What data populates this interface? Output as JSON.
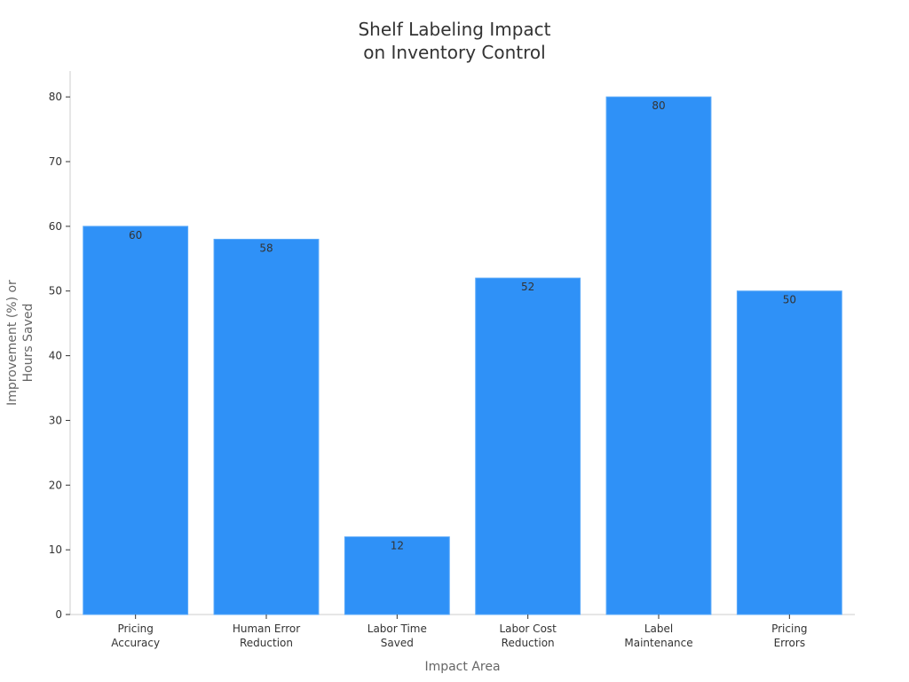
{
  "chart_data": {
    "type": "bar",
    "title": [
      "Shelf Labeling Impact",
      "on Inventory Control"
    ],
    "xlabel": "Impact Area",
    "ylabel": [
      "Improvement (%) or",
      "Hours Saved"
    ],
    "categories": [
      [
        "Pricing",
        "Accuracy"
      ],
      [
        "Human Error",
        "Reduction"
      ],
      [
        "Labor Time",
        "Saved"
      ],
      [
        "Labor Cost",
        "Reduction"
      ],
      [
        "Label",
        "Maintenance"
      ],
      [
        "Pricing",
        "Errors"
      ]
    ],
    "values": [
      60,
      58,
      12,
      52,
      80,
      50
    ],
    "ylim": [
      0,
      84
    ],
    "yticks": [
      0,
      10,
      20,
      30,
      40,
      50,
      60,
      70,
      80
    ],
    "grid": false,
    "legend": "none",
    "colors": {
      "bar": "#2f91f7",
      "bar_edge": "#5aa9f9",
      "axis": "#cccccc",
      "text": "#333333",
      "axis_title": "#666666"
    }
  }
}
